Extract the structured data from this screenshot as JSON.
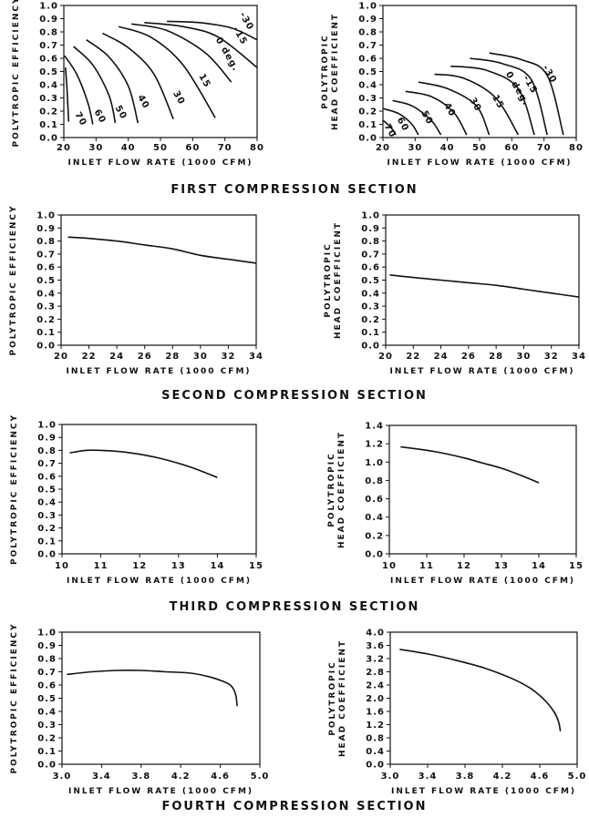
{
  "sections": [
    {
      "title": "FIRST COMPRESSION SECTION",
      "charts": [
        {
          "type": "line",
          "xlabel": "INLET FLOW RATE (1000 CFM)",
          "ylabel": [
            "POLYTROPIC EFFICIENCY"
          ],
          "xlim": [
            20,
            80
          ],
          "ylim": [
            0,
            1
          ],
          "xticks": [
            "20",
            "30",
            "40",
            "50",
            "60",
            "70",
            "80"
          ],
          "yticks": [
            "0.0",
            "0.1",
            "0.2",
            "0.3",
            "0.4",
            "0.5",
            "0.6",
            "0.7",
            "0.8",
            "0.9",
            "1.0"
          ],
          "series": [
            {
              "label": "70",
              "x": [
                20.5,
                20.9,
                21.2,
                21.5
              ],
              "y": [
                0.53,
                0.4,
                0.27,
                0.12
              ],
              "label_at": [
                24.5,
                0.13
              ]
            },
            {
              "label": "60",
              "x": [
                20.2,
                24,
                27.5,
                29
              ],
              "y": [
                0.62,
                0.48,
                0.26,
                0.1
              ],
              "label_at": [
                30.5,
                0.15
              ]
            },
            {
              "label": "50",
              "x": [
                23,
                29,
                34,
                36
              ],
              "y": [
                0.69,
                0.55,
                0.32,
                0.11
              ],
              "label_at": [
                37,
                0.18
              ]
            },
            {
              "label": "40",
              "x": [
                27,
                34,
                40,
                43
              ],
              "y": [
                0.74,
                0.61,
                0.39,
                0.11
              ],
              "label_at": [
                44,
                0.26
              ]
            },
            {
              "label": "30",
              "x": [
                32,
                40,
                48,
                54
              ],
              "y": [
                0.79,
                0.68,
                0.48,
                0.14
              ],
              "label_at": [
                55,
                0.29
              ]
            },
            {
              "label": "15",
              "x": [
                37,
                47,
                57,
                67
              ],
              "y": [
                0.84,
                0.76,
                0.55,
                0.15
              ],
              "label_at": [
                63,
                0.42
              ]
            },
            {
              "label": "0 deg.",
              "x": [
                41,
                52,
                64,
                72
              ],
              "y": [
                0.86,
                0.81,
                0.64,
                0.42
              ],
              "label_at": [
                70,
                0.62
              ]
            },
            {
              "label": "-15",
              "x": [
                45,
                57,
                68,
                80
              ],
              "y": [
                0.87,
                0.84,
                0.76,
                0.53
              ],
              "label_at": [
                74,
                0.76
              ]
            },
            {
              "label": "-30",
              "x": [
                52,
                62,
                72,
                80
              ],
              "y": [
                0.88,
                0.87,
                0.83,
                0.74
              ],
              "label_at": [
                76,
                0.87
              ]
            }
          ]
        },
        {
          "type": "line",
          "xlabel": "INLET FLOW RATE (1000 CFM)",
          "ylabel": [
            "POLYTROPIC",
            "HEAD COEFFICIENT"
          ],
          "xlim": [
            20,
            80
          ],
          "ylim": [
            0,
            1
          ],
          "xticks": [
            "20",
            "30",
            "40",
            "50",
            "60",
            "70",
            "80"
          ],
          "yticks": [
            "0.0",
            "0.1",
            "0.2",
            "0.3",
            "0.4",
            "0.5",
            "0.6",
            "0.7",
            "0.8",
            "0.9",
            "1.0"
          ],
          "series": [
            {
              "label": "70",
              "x": [
                20,
                21.5,
                23,
                24
              ],
              "y": [
                0.13,
                0.1,
                0.06,
                0.02
              ],
              "label_at": [
                21.5,
                0.04
              ]
            },
            {
              "label": "60",
              "x": [
                20,
                25,
                29,
                31
              ],
              "y": [
                0.22,
                0.18,
                0.1,
                0.02
              ],
              "label_at": [
                25.5,
                0.09
              ]
            },
            {
              "label": "50",
              "x": [
                23,
                29,
                35,
                38
              ],
              "y": [
                0.28,
                0.24,
                0.13,
                0.02
              ],
              "label_at": [
                33,
                0.14
              ]
            },
            {
              "label": "40",
              "x": [
                27,
                35,
                42,
                46
              ],
              "y": [
                0.35,
                0.31,
                0.19,
                0.02
              ],
              "label_at": [
                40,
                0.2
              ]
            },
            {
              "label": "30",
              "x": [
                31,
                40,
                49,
                53
              ],
              "y": [
                0.42,
                0.37,
                0.24,
                0.02
              ],
              "label_at": [
                48,
                0.24
              ]
            },
            {
              "label": "15",
              "x": [
                36,
                45,
                55,
                62
              ],
              "y": [
                0.48,
                0.45,
                0.3,
                0.02
              ],
              "label_at": [
                55,
                0.26
              ]
            },
            {
              "label": "0 deg.",
              "x": [
                41,
                52,
                62,
                67
              ],
              "y": [
                0.54,
                0.51,
                0.37,
                0.02
              ],
              "label_at": [
                61,
                0.36
              ]
            },
            {
              "label": "-15",
              "x": [
                47,
                57,
                66,
                71
              ],
              "y": [
                0.6,
                0.56,
                0.44,
                0.02
              ],
              "label_at": [
                65,
                0.39
              ]
            },
            {
              "label": "-30",
              "x": [
                53,
                63,
                71,
                76
              ],
              "y": [
                0.64,
                0.59,
                0.47,
                0.02
              ],
              "label_at": [
                71,
                0.47
              ]
            }
          ]
        }
      ]
    },
    {
      "title": "SECOND COMPRESSION SECTION",
      "charts": [
        {
          "type": "line",
          "xlabel": "INLET FLOW RATE (1000 CFM)",
          "ylabel": [
            "POLYTROPIC EFFICIENCY"
          ],
          "xlim": [
            20,
            34
          ],
          "ylim": [
            0,
            1
          ],
          "xticks": [
            "20",
            "22",
            "24",
            "26",
            "28",
            "30",
            "32",
            "34"
          ],
          "yticks": [
            "0.0",
            "0.1",
            "0.2",
            "0.3",
            "0.4",
            "0.5",
            "0.6",
            "0.7",
            "0.8",
            "0.9",
            "1.0"
          ],
          "series": [
            {
              "x": [
                20.5,
                22,
                24,
                26,
                28,
                30,
                32,
                34
              ],
              "y": [
                0.83,
                0.82,
                0.8,
                0.77,
                0.74,
                0.69,
                0.66,
                0.63
              ]
            }
          ]
        },
        {
          "type": "line",
          "xlabel": "INLET FLOW RATE (1000 CFM)",
          "ylabel": [
            "POLYTROPIC",
            "HEAD COEFFICIENT"
          ],
          "xlim": [
            20,
            34
          ],
          "ylim": [
            0,
            1
          ],
          "xticks": [
            "20",
            "22",
            "24",
            "26",
            "28",
            "30",
            "32",
            "34"
          ],
          "yticks": [
            "0.0",
            "0.1",
            "0.2",
            "0.3",
            "0.4",
            "0.5",
            "0.6",
            "0.7",
            "0.8",
            "0.9",
            "1.0"
          ],
          "series": [
            {
              "x": [
                20.3,
                22,
                24,
                26,
                28,
                30,
                32,
                34
              ],
              "y": [
                0.54,
                0.52,
                0.5,
                0.48,
                0.46,
                0.43,
                0.4,
                0.37
              ]
            }
          ]
        }
      ]
    },
    {
      "title": "THIRD COMPRESSION SECTION",
      "charts": [
        {
          "type": "line",
          "xlabel": "INLET FLOW RATE (1000 CFM)",
          "ylabel": [
            "POLYTROPIC EFFICIENCY"
          ],
          "xlim": [
            10,
            15
          ],
          "ylim": [
            0,
            1
          ],
          "xticks": [
            "10",
            "11",
            "12",
            "13",
            "14",
            "15"
          ],
          "yticks": [
            "0.0",
            "0.1",
            "0.2",
            "0.3",
            "0.4",
            "0.5",
            "0.6",
            "0.7",
            "0.8",
            "0.9",
            "1.0"
          ],
          "series": [
            {
              "x": [
                10.2,
                10.6,
                11,
                11.5,
                12,
                12.5,
                13,
                13.5,
                14
              ],
              "y": [
                0.78,
                0.8,
                0.8,
                0.79,
                0.77,
                0.74,
                0.7,
                0.65,
                0.59
              ]
            }
          ]
        },
        {
          "type": "line",
          "xlabel": "INLET FLOW RATE (1000 CFM)",
          "ylabel": [
            "POLYTROPIC",
            "HEAD COEFFICIENT"
          ],
          "xlim": [
            10,
            15
          ],
          "ylim": [
            0,
            1.5
          ],
          "xticks": [
            "10",
            "11",
            "12",
            "13",
            "14",
            "15"
          ],
          "yticks": [
            "0.0",
            "0.2",
            "0.4",
            "0.6",
            "0.8",
            "1.0",
            "1.2",
            "1.4"
          ],
          "series": [
            {
              "x": [
                10.3,
                11,
                11.5,
                12,
                12.5,
                13,
                13.5,
                14
              ],
              "y": [
                1.25,
                1.21,
                1.17,
                1.12,
                1.06,
                1.0,
                0.92,
                0.83
              ]
            }
          ]
        }
      ]
    },
    {
      "title": "FOURTH COMPRESSION SECTION",
      "charts": [
        {
          "type": "line",
          "xlabel": "INLET FLOW RATE (1000 CFM)",
          "ylabel": [
            "POLYTROPIC EFFICIENCY"
          ],
          "xlim": [
            3.0,
            5.0
          ],
          "ylim": [
            0,
            1
          ],
          "xticks": [
            "3.0",
            "3.4",
            "3.8",
            "4.2",
            "4.6",
            "5.0"
          ],
          "yticks": [
            "0.0",
            "0.1",
            "0.2",
            "0.3",
            "0.4",
            "0.5",
            "0.6",
            "0.7",
            "0.8",
            "0.9",
            "1.0"
          ],
          "series": [
            {
              "x": [
                3.05,
                3.3,
                3.55,
                3.8,
                4.05,
                4.3,
                4.5,
                4.62,
                4.7,
                4.74,
                4.76,
                4.77
              ],
              "y": [
                0.68,
                0.7,
                0.71,
                0.71,
                0.7,
                0.69,
                0.66,
                0.63,
                0.6,
                0.56,
                0.51,
                0.44
              ]
            }
          ]
        },
        {
          "type": "line",
          "xlabel": "INLET FLOW RATE (1000 CFM)",
          "ylabel": [
            "POLYTROPIC",
            "HEAD COEFFICIENT"
          ],
          "xlim": [
            3.0,
            5.0
          ],
          "ylim": [
            0,
            4.0
          ],
          "xticks": [
            "3.0",
            "3.4",
            "3.8",
            "4.2",
            "4.6",
            "5.0"
          ],
          "yticks": [
            "0.0",
            "0.4",
            "0.8",
            "1.2",
            "1.6",
            "2.0",
            "2.4",
            "2.8",
            "3.2",
            "3.6",
            "4.0"
          ],
          "series": [
            {
              "x": [
                3.1,
                3.4,
                3.7,
                4.0,
                4.3,
                4.5,
                4.65,
                4.75,
                4.8,
                4.82
              ],
              "y": [
                3.48,
                3.34,
                3.15,
                2.92,
                2.6,
                2.3,
                1.95,
                1.6,
                1.3,
                1.0
              ]
            }
          ]
        }
      ]
    }
  ]
}
